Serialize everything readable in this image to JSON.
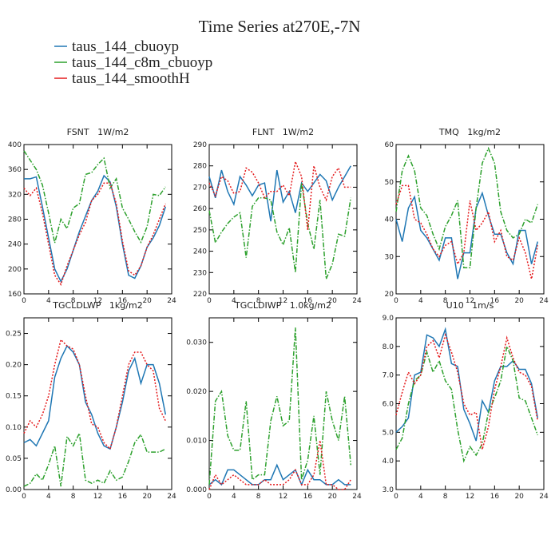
{
  "title": "Time Series at270E,-7N",
  "chart_data": [
    {
      "type": "line",
      "title": "FSNT   1W/m2",
      "x": [
        0,
        1,
        2,
        3,
        4,
        5,
        6,
        7,
        8,
        9,
        10,
        11,
        12,
        13,
        14,
        15,
        16,
        17,
        18,
        19,
        20,
        21,
        22,
        23
      ],
      "xlim": [
        0,
        24
      ],
      "xticks": [
        0,
        4,
        8,
        12,
        16,
        20,
        24
      ],
      "ylim": [
        160,
        400
      ],
      "yticks": [
        160,
        200,
        240,
        280,
        320,
        360,
        400
      ],
      "series": [
        {
          "name": "taus_144_cbuoyp",
          "color": "#1f77b4",
          "style": "solid",
          "values": [
            345,
            345,
            348,
            300,
            250,
            200,
            180,
            200,
            230,
            260,
            285,
            310,
            325,
            350,
            340,
            300,
            240,
            190,
            185,
            205,
            235,
            250,
            270,
            300
          ]
        },
        {
          "name": "taus_144_c8m_cbuoyp",
          "color": "#2ca02c",
          "style": "dashdot",
          "values": [
            390,
            375,
            360,
            335,
            290,
            242,
            280,
            265,
            298,
            305,
            352,
            355,
            368,
            378,
            330,
            345,
            298,
            280,
            260,
            243,
            268,
            320,
            318,
            332
          ]
        },
        {
          "name": "taus_144_smoothH",
          "color": "#e41a1c",
          "style": "dotted",
          "values": [
            330,
            318,
            330,
            290,
            240,
            190,
            175,
            205,
            230,
            255,
            275,
            310,
            320,
            338,
            338,
            305,
            245,
            197,
            190,
            205,
            235,
            255,
            280,
            305
          ]
        }
      ]
    },
    {
      "type": "line",
      "title": "FLNT   1W/m2",
      "x": [
        0,
        1,
        2,
        3,
        4,
        5,
        6,
        7,
        8,
        9,
        10,
        11,
        12,
        13,
        14,
        15,
        16,
        17,
        18,
        19,
        20,
        21,
        22,
        23
      ],
      "xlim": [
        0,
        24
      ],
      "xticks": [
        0,
        4,
        8,
        12,
        16,
        20,
        24
      ],
      "ylim": [
        220,
        290
      ],
      "yticks": [
        220,
        230,
        240,
        250,
        260,
        270,
        280,
        290
      ],
      "series": [
        {
          "name": "taus_144_cbuoyp",
          "color": "#1f77b4",
          "style": "solid",
          "values": [
            275,
            265,
            278,
            268,
            262,
            275,
            271,
            266,
            271,
            272,
            254,
            278,
            263,
            268,
            258,
            272,
            268,
            272,
            276,
            273,
            264,
            270,
            275,
            280
          ]
        },
        {
          "name": "taus_144_c8m_cbuoyp",
          "color": "#2ca02c",
          "style": "dashdot",
          "values": [
            259,
            244,
            249,
            253,
            256,
            258,
            237,
            261,
            265,
            265,
            264,
            249,
            243,
            251,
            230,
            272,
            253,
            241,
            264,
            227,
            234,
            248,
            247,
            265
          ]
        },
        {
          "name": "taus_144_smoothH",
          "color": "#e41a1c",
          "style": "dotted",
          "values": [
            272,
            266,
            275,
            273,
            267,
            268,
            279,
            277,
            272,
            265,
            268,
            268,
            271,
            266,
            282,
            275,
            250,
            280,
            270,
            264,
            275,
            279,
            270,
            270
          ]
        }
      ]
    },
    {
      "type": "line",
      "title": "TMQ   1kg/m2",
      "x": [
        0,
        1,
        2,
        3,
        4,
        5,
        6,
        7,
        8,
        9,
        10,
        11,
        12,
        13,
        14,
        15,
        16,
        17,
        18,
        19,
        20,
        21,
        22,
        23
      ],
      "xlim": [
        0,
        24
      ],
      "xticks": [
        0,
        4,
        8,
        12,
        16,
        20,
        24
      ],
      "ylim": [
        20,
        60
      ],
      "yticks": [
        20,
        30,
        40,
        50,
        60
      ],
      "series": [
        {
          "name": "taus_144_cbuoyp",
          "color": "#1f77b4",
          "style": "solid",
          "values": [
            40,
            34,
            43,
            46,
            37,
            35,
            32,
            29,
            35,
            35,
            24,
            31,
            31,
            43,
            47,
            41,
            36,
            36,
            31,
            28,
            37,
            37,
            28,
            34
          ]
        },
        {
          "name": "taus_144_c8m_cbuoyp",
          "color": "#2ca02c",
          "style": "dashdot",
          "values": [
            42,
            53,
            57,
            53,
            43,
            41,
            36,
            32,
            38,
            41,
            45,
            27,
            27,
            43,
            55,
            59,
            55,
            42,
            37,
            35,
            36,
            40,
            39,
            44
          ]
        },
        {
          "name": "taus_144_smoothH",
          "color": "#e41a1c",
          "style": "dotted",
          "values": [
            44,
            49,
            49,
            40,
            39,
            36,
            32,
            30,
            33,
            34,
            28,
            31,
            45,
            37,
            39,
            42,
            34,
            37,
            30,
            29,
            35,
            31,
            24,
            33
          ]
        }
      ]
    },
    {
      "type": "line",
      "title": "TGCLDLWP   1kg/m2",
      "x": [
        0,
        1,
        2,
        3,
        4,
        5,
        6,
        7,
        8,
        9,
        10,
        11,
        12,
        13,
        14,
        15,
        16,
        17,
        18,
        19,
        20,
        21,
        22,
        23
      ],
      "xlim": [
        0,
        24
      ],
      "xticks": [
        0,
        4,
        8,
        12,
        16,
        20,
        24
      ],
      "ylim": [
        0,
        0.275
      ],
      "yticks": [
        {
          "value": 0,
          "label": "0.00"
        },
        {
          "value": 0.05,
          "label": "0.05"
        },
        {
          "value": 0.1,
          "label": "0.10"
        },
        {
          "value": 0.15,
          "label": "0.15"
        },
        {
          "value": 0.2,
          "label": "0.20"
        },
        {
          "value": 0.25,
          "label": "0.25"
        }
      ],
      "series": [
        {
          "name": "taus_144_cbuoyp",
          "color": "#1f77b4",
          "style": "solid",
          "values": [
            0.075,
            0.08,
            0.07,
            0.09,
            0.11,
            0.18,
            0.21,
            0.23,
            0.22,
            0.2,
            0.14,
            0.12,
            0.09,
            0.07,
            0.065,
            0.1,
            0.14,
            0.19,
            0.21,
            0.17,
            0.2,
            0.2,
            0.17,
            0.12
          ]
        },
        {
          "name": "taus_144_c8m_cbuoyp",
          "color": "#2ca02c",
          "style": "dashdot",
          "values": [
            0.005,
            0.01,
            0.025,
            0.015,
            0.04,
            0.07,
            0.005,
            0.085,
            0.07,
            0.09,
            0.015,
            0.01,
            0.015,
            0.01,
            0.03,
            0.015,
            0.02,
            0.045,
            0.075,
            0.088,
            0.06,
            0.06,
            0.06,
            0.065
          ]
        },
        {
          "name": "taus_144_smoothH",
          "color": "#e41a1c",
          "style": "dotted",
          "values": [
            0.09,
            0.11,
            0.1,
            0.12,
            0.15,
            0.2,
            0.24,
            0.23,
            0.225,
            0.2,
            0.15,
            0.105,
            0.1,
            0.075,
            0.065,
            0.1,
            0.15,
            0.2,
            0.22,
            0.22,
            0.2,
            0.19,
            0.13,
            0.11
          ]
        }
      ]
    },
    {
      "type": "line",
      "title": "TGCLDIWP   1.0kg/m2",
      "x": [
        0,
        1,
        2,
        3,
        4,
        5,
        6,
        7,
        8,
        9,
        10,
        11,
        12,
        13,
        14,
        15,
        16,
        17,
        18,
        19,
        20,
        21,
        22,
        23
      ],
      "xlim": [
        0,
        24
      ],
      "xticks": [
        0,
        4,
        8,
        12,
        16,
        20,
        24
      ],
      "ylim": [
        0,
        0.035
      ],
      "yticks": [
        {
          "value": 0,
          "label": "0.000"
        },
        {
          "value": 0.01,
          "label": "0.010"
        },
        {
          "value": 0.02,
          "label": "0.020"
        },
        {
          "value": 0.03,
          "label": "0.030"
        }
      ],
      "series": [
        {
          "name": "taus_144_cbuoyp",
          "color": "#1f77b4",
          "style": "solid",
          "values": [
            0.001,
            0.002,
            0.001,
            0.004,
            0.004,
            0.003,
            0.002,
            0.001,
            0.001,
            0.002,
            0.002,
            0.005,
            0.002,
            0.003,
            0.004,
            0.001,
            0.004,
            0.002,
            0.002,
            0.001,
            0.001,
            0.002,
            0.001,
            0.001
          ]
        },
        {
          "name": "taus_144_c8m_cbuoyp",
          "color": "#2ca02c",
          "style": "dashdot",
          "values": [
            0.001,
            0.018,
            0.02,
            0.011,
            0.008,
            0.008,
            0.018,
            0.002,
            0.003,
            0.003,
            0.014,
            0.019,
            0.013,
            0.014,
            0.033,
            0.002,
            0.006,
            0.015,
            0.003,
            0.02,
            0.014,
            0.01,
            0.019,
            0.005
          ]
        },
        {
          "name": "taus_144_smoothH",
          "color": "#e41a1c",
          "style": "dotted",
          "values": [
            0,
            0.003,
            0.001,
            0.002,
            0.003,
            0.002,
            0.001,
            0.001,
            0.001,
            0.002,
            0.001,
            0.001,
            0.001,
            0.002,
            0.004,
            0.001,
            0.001,
            0.003,
            0.01,
            0.001,
            0.001,
            0,
            0,
            0.002
          ]
        }
      ]
    },
    {
      "type": "line",
      "title": "U10   1m/s",
      "x": [
        0,
        1,
        2,
        3,
        4,
        5,
        6,
        7,
        8,
        9,
        10,
        11,
        12,
        13,
        14,
        15,
        16,
        17,
        18,
        19,
        20,
        21,
        22,
        23
      ],
      "xlim": [
        0,
        24
      ],
      "xticks": [
        0,
        4,
        8,
        12,
        16,
        20,
        24
      ],
      "ylim": [
        3,
        9
      ],
      "yticks": [
        {
          "value": 3,
          "label": "3.0"
        },
        {
          "value": 4,
          "label": "4.0"
        },
        {
          "value": 5,
          "label": "5.0"
        },
        {
          "value": 6,
          "label": "6.0"
        },
        {
          "value": 7,
          "label": "7.0"
        },
        {
          "value": 8,
          "label": "8.0"
        },
        {
          "value": 9,
          "label": "9.0"
        }
      ],
      "series": [
        {
          "name": "taus_144_cbuoyp",
          "color": "#1f77b4",
          "style": "solid",
          "values": [
            5.0,
            5.2,
            5.5,
            7.0,
            7.1,
            8.4,
            8.3,
            8.0,
            8.6,
            7.4,
            7.3,
            5.8,
            5.3,
            4.7,
            6.1,
            5.7,
            6.8,
            7.3,
            7.3,
            7.5,
            7.2,
            7.2,
            6.7,
            5.5
          ]
        },
        {
          "name": "taus_144_c8m_cbuoyp",
          "color": "#2ca02c",
          "style": "dashdot",
          "values": [
            4.4,
            4.8,
            6.0,
            6.8,
            7.0,
            7.8,
            7.1,
            7.5,
            6.8,
            6.5,
            5.1,
            4.0,
            4.5,
            4.2,
            4.6,
            5.7,
            6.2,
            6.8,
            8.0,
            7.5,
            6.2,
            6.1,
            5.5,
            4.9
          ]
        },
        {
          "name": "taus_144_smoothH",
          "color": "#e41a1c",
          "style": "dotted",
          "values": [
            5.6,
            6.4,
            7.1,
            6.7,
            7.0,
            8.0,
            8.2,
            7.6,
            8.4,
            7.8,
            7.1,
            6.0,
            5.6,
            5.7,
            4.4,
            5.2,
            6.5,
            7.3,
            8.3,
            7.6,
            7.1,
            7.0,
            6.6,
            5.4
          ]
        }
      ]
    }
  ]
}
